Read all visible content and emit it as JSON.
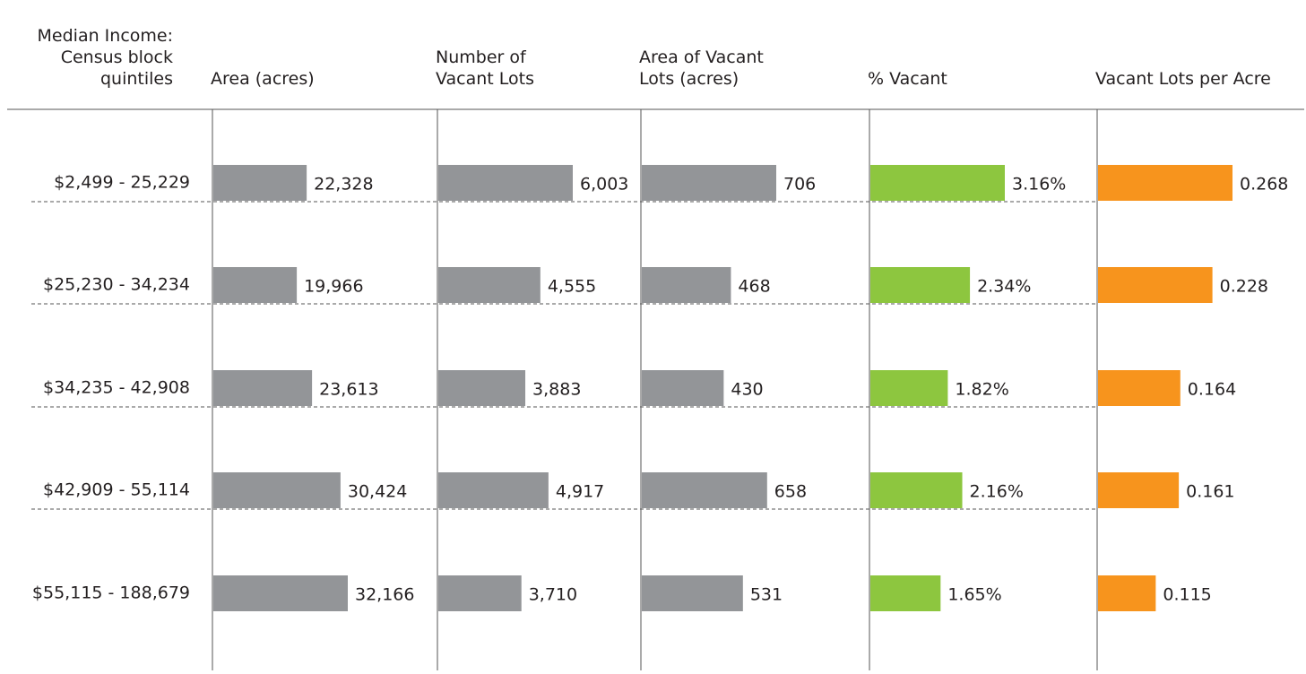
{
  "chart_data": {
    "type": "bar",
    "orientation": "horizontal",
    "row_header": [
      "Median Income:",
      "Census block",
      "quintiles"
    ],
    "categories": [
      "$2,499 - 25,229",
      "$25,230 - 34,234",
      "$34,235 - 42,908",
      "$42,909 - 55,114",
      "$55,115 - 188,679"
    ],
    "series": [
      {
        "name": "Area (acres)",
        "color": "#939598",
        "values": [
          22328,
          19966,
          23613,
          30424,
          32166
        ],
        "value_labels": [
          "22,328",
          "19,966",
          "23,613",
          "30,424",
          "32,166"
        ]
      },
      {
        "name": "Number of Vacant Lots",
        "color": "#939598",
        "values": [
          6003,
          4555,
          3883,
          4917,
          3710
        ],
        "value_labels": [
          "6,003",
          "4,555",
          "3,883",
          "4,917",
          "3,710"
        ]
      },
      {
        "name": "Area of Vacant Lots (acres)",
        "color": "#939598",
        "values": [
          706,
          468,
          430,
          658,
          531
        ]
      },
      {
        "name": "% Vacant",
        "color": "#8dc63f",
        "values": [
          3.16,
          2.34,
          1.82,
          2.16,
          1.65
        ],
        "value_labels": [
          "3.16%",
          "2.34%",
          "1.82%",
          "2.16%",
          "1.65%"
        ]
      },
      {
        "name": "Vacant Lots per Acre",
        "color": "#f7941d",
        "values": [
          0.268,
          0.228,
          0.164,
          0.161,
          0.115
        ]
      }
    ]
  }
}
